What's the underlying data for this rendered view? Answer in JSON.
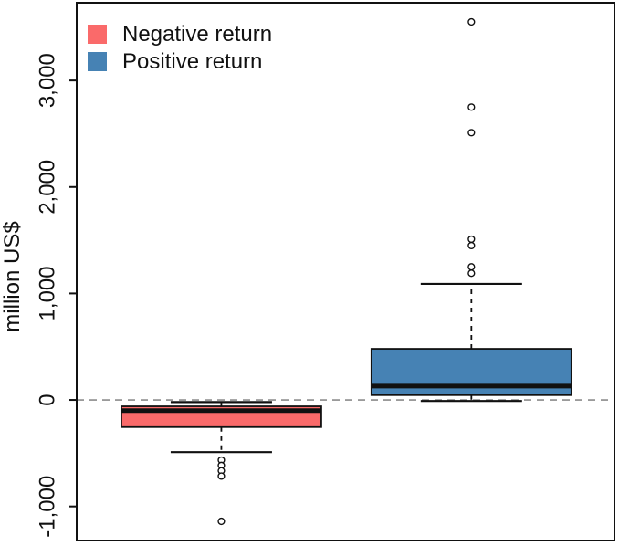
{
  "chart_data": {
    "type": "boxplot",
    "title": "",
    "ylabel": "million US$",
    "xlabel": "",
    "ylim": [
      -1320,
      3730
    ],
    "grid": false,
    "reference_line": 0,
    "yticks": [
      {
        "value": 3000,
        "label": "3,000"
      },
      {
        "value": 2000,
        "label": "2,000"
      },
      {
        "value": 1000,
        "label": "1,000"
      },
      {
        "value": 0,
        "label": "0"
      },
      {
        "value": -1000,
        "label": "-1,000"
      }
    ],
    "legend": {
      "position": "top-left",
      "items": [
        {
          "label": "Negative return",
          "color": "#FA6A6A"
        },
        {
          "label": "Positive return",
          "color": "#4682B4"
        }
      ]
    },
    "series": [
      {
        "name": "Negative return",
        "color": "#FA6A6A",
        "q1": -255,
        "median": -100,
        "q3": -60,
        "whisker_low": -490,
        "whisker_high": -20,
        "outliers": [
          -565,
          -615,
          -665,
          -715,
          -1140
        ]
      },
      {
        "name": "Positive return",
        "color": "#4682B4",
        "q1": 45,
        "median": 130,
        "q3": 480,
        "whisker_low": -10,
        "whisker_high": 1090,
        "outliers": [
          1190,
          1250,
          1450,
          1510,
          2510,
          2750,
          3550
        ]
      }
    ],
    "colors": {
      "reference_line": "#8C8C8C",
      "axis": "#111111",
      "outlier_fill": "#FFFFFF"
    }
  }
}
